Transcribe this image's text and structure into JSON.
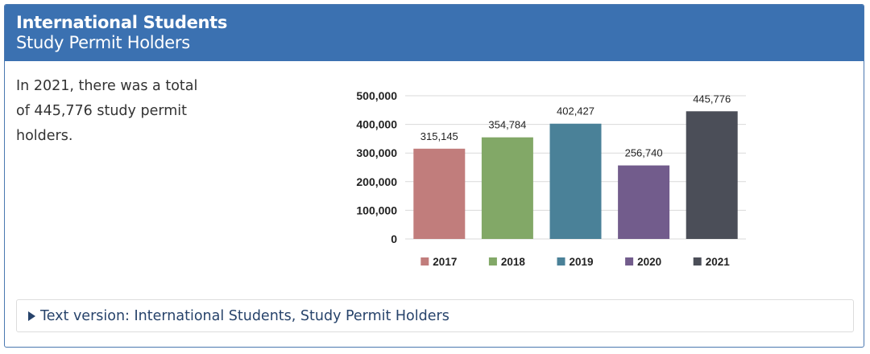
{
  "header": {
    "title": "International Students",
    "subtitle": "Study Permit Holders"
  },
  "summary": {
    "text": "In 2021, there was a total of 445,776 study permit holders."
  },
  "details": {
    "label": "Text version: International Students, Study Permit Holders"
  },
  "chart_data": {
    "type": "bar",
    "title": "",
    "xlabel": "",
    "ylabel": "",
    "categories": [
      "2017",
      "2018",
      "2019",
      "2020",
      "2021"
    ],
    "values": [
      315145,
      354784,
      402427,
      256740,
      445776
    ],
    "data_labels": [
      "315,145",
      "354,784",
      "402,427",
      "256,740",
      "445,776"
    ],
    "colors": [
      "#c17d7c",
      "#82a867",
      "#4a8198",
      "#725c8c",
      "#4b4e58"
    ],
    "ylim": [
      0,
      500000
    ],
    "yticks": [
      0,
      100000,
      200000,
      300000,
      400000,
      500000
    ],
    "ytick_labels": [
      "0",
      "100,000",
      "200,000",
      "300,000",
      "400,000",
      "500,000"
    ],
    "grid": true,
    "legend": "bottom"
  }
}
